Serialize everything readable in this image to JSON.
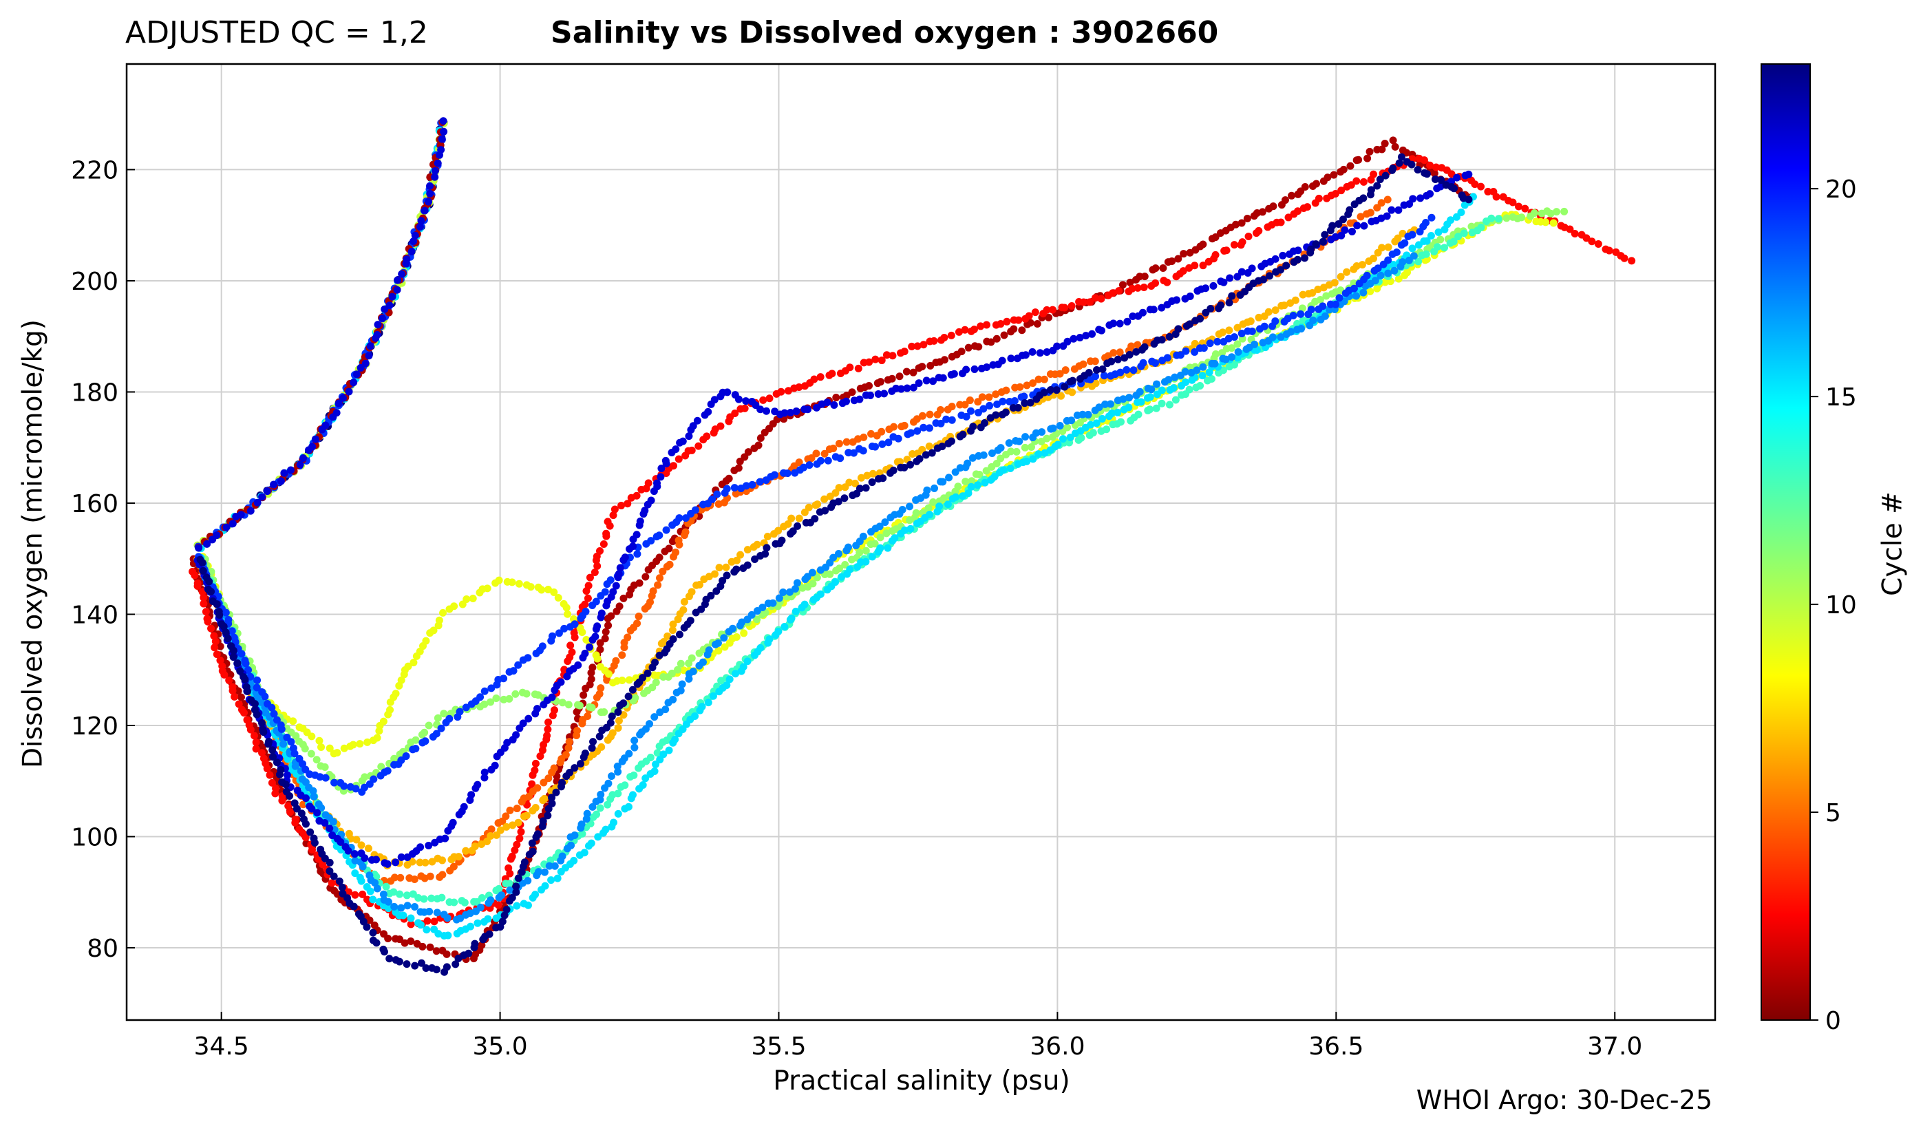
{
  "header": {
    "qc_label": "ADJUSTED QC = 1,2",
    "title": "Salinity vs Dissolved oxygen : 3902660"
  },
  "footer": {
    "credit": "WHOI Argo: 30-Dec-25"
  },
  "colorbar": {
    "label": "Cycle #",
    "min": 0,
    "max": 23,
    "ticks": [
      0,
      5,
      10,
      15,
      20
    ],
    "colormap": "jet (reversed: 0 = dark red, 23 = dark blue)"
  },
  "chart_data": {
    "type": "scatter",
    "title": "Salinity vs Dissolved oxygen : 3902660",
    "xlabel": "Practical salinity  (psu)",
    "ylabel": "Dissolved oxygen  (micromole/kg)",
    "xlim": [
      34.33,
      37.18
    ],
    "ylim": [
      67,
      239
    ],
    "xticks": [
      34.5,
      35.0,
      35.5,
      36.0,
      36.5,
      37.0
    ],
    "xtick_labels": [
      "34.5",
      "35.0",
      "35.5",
      "36.0",
      "36.5",
      "37.0"
    ],
    "yticks": [
      80,
      100,
      120,
      140,
      160,
      180,
      200,
      220
    ],
    "ytick_labels": [
      "80",
      "100",
      "120",
      "140",
      "160",
      "180",
      "200",
      "220"
    ],
    "grid": true,
    "color_variable": "Cycle #",
    "upper_branch": [
      [
        34.46,
        152
      ],
      [
        34.55,
        159
      ],
      [
        34.65,
        168
      ],
      [
        34.75,
        184
      ],
      [
        34.82,
        200
      ],
      [
        34.87,
        214
      ],
      [
        34.89,
        224
      ],
      [
        34.9,
        230
      ]
    ],
    "minimum_region": {
      "salinity": 34.9,
      "oxygen_min": 75
    },
    "series": [
      {
        "name": "Cycle 1",
        "cycle": 1,
        "points": [
          [
            34.45,
            150
          ],
          [
            34.5,
            133
          ],
          [
            34.6,
            110
          ],
          [
            34.7,
            90
          ],
          [
            34.8,
            82
          ],
          [
            34.95,
            78
          ],
          [
            35.05,
            95
          ],
          [
            35.2,
            140
          ],
          [
            35.5,
            175
          ],
          [
            35.8,
            186
          ],
          [
            36.1,
            198
          ],
          [
            36.4,
            214
          ],
          [
            36.6,
            225
          ],
          [
            36.75,
            214
          ]
        ]
      },
      {
        "name": "Cycle 3",
        "cycle": 3,
        "points": [
          [
            34.45,
            148
          ],
          [
            34.5,
            131
          ],
          [
            34.6,
            108
          ],
          [
            34.7,
            92
          ],
          [
            34.85,
            84
          ],
          [
            35.0,
            88
          ],
          [
            35.1,
            125
          ],
          [
            35.2,
            158
          ],
          [
            35.45,
            178
          ],
          [
            35.8,
            190
          ],
          [
            36.2,
            200
          ],
          [
            36.5,
            216
          ],
          [
            36.65,
            222
          ],
          [
            36.8,
            215
          ],
          [
            37.0,
            205
          ],
          [
            37.04,
            203
          ]
        ]
      },
      {
        "name": "Cycle 5",
        "cycle": 5,
        "points": [
          [
            34.46,
            150
          ],
          [
            34.55,
            128
          ],
          [
            34.65,
            106
          ],
          [
            34.78,
            92
          ],
          [
            34.9,
            93
          ],
          [
            35.1,
            112
          ],
          [
            35.2,
            130
          ],
          [
            35.35,
            158
          ],
          [
            35.6,
            170
          ],
          [
            35.9,
            180
          ],
          [
            36.2,
            190
          ],
          [
            36.45,
            205
          ],
          [
            36.6,
            215
          ]
        ]
      },
      {
        "name": "Cycle 7",
        "cycle": 7,
        "points": [
          [
            34.46,
            150
          ],
          [
            34.55,
            127
          ],
          [
            34.68,
            104
          ],
          [
            34.8,
            95
          ],
          [
            34.92,
            96
          ],
          [
            35.05,
            104
          ],
          [
            35.2,
            118
          ],
          [
            35.35,
            145
          ],
          [
            35.6,
            162
          ],
          [
            35.9,
            176
          ],
          [
            36.2,
            186
          ],
          [
            36.5,
            200
          ],
          [
            36.65,
            210
          ]
        ]
      },
      {
        "name": "Cycle 9",
        "cycle": 9,
        "points": [
          [
            34.47,
            150
          ],
          [
            34.56,
            126
          ],
          [
            34.7,
            115
          ],
          [
            34.78,
            118
          ],
          [
            34.82,
            128
          ],
          [
            34.9,
            140
          ],
          [
            35.0,
            146
          ],
          [
            35.1,
            144
          ],
          [
            35.2,
            128
          ],
          [
            35.35,
            130
          ],
          [
            35.6,
            150
          ],
          [
            35.9,
            166
          ],
          [
            36.3,
            185
          ],
          [
            36.6,
            200
          ],
          [
            36.8,
            212
          ],
          [
            36.9,
            210
          ]
        ]
      },
      {
        "name": "Cycle 11",
        "cycle": 11,
        "points": [
          [
            34.47,
            150
          ],
          [
            34.58,
            124
          ],
          [
            34.72,
            108
          ],
          [
            34.8,
            113
          ],
          [
            34.9,
            122
          ],
          [
            35.05,
            126
          ],
          [
            35.2,
            122
          ],
          [
            35.4,
            136
          ],
          [
            35.6,
            148
          ],
          [
            35.9,
            168
          ],
          [
            36.2,
            182
          ],
          [
            36.5,
            198
          ],
          [
            36.75,
            210
          ],
          [
            36.92,
            213
          ]
        ]
      },
      {
        "name": "Cycle 13",
        "cycle": 13,
        "points": [
          [
            34.46,
            150
          ],
          [
            34.57,
            125
          ],
          [
            34.68,
            104
          ],
          [
            34.8,
            90
          ],
          [
            34.95,
            88
          ],
          [
            35.1,
            96
          ],
          [
            35.25,
            112
          ],
          [
            35.4,
            128
          ],
          [
            35.6,
            146
          ],
          [
            35.9,
            166
          ],
          [
            36.2,
            178
          ],
          [
            36.5,
            196
          ],
          [
            36.8,
            212
          ]
        ]
      },
      {
        "name": "Cycle 15",
        "cycle": 15,
        "points": [
          [
            34.46,
            150
          ],
          [
            34.55,
            127
          ],
          [
            34.66,
            106
          ],
          [
            34.78,
            88
          ],
          [
            34.9,
            82
          ],
          [
            35.05,
            88
          ],
          [
            35.2,
            102
          ],
          [
            35.35,
            122
          ],
          [
            35.55,
            142
          ],
          [
            35.8,
            160
          ],
          [
            36.1,
            176
          ],
          [
            36.45,
            192
          ],
          [
            36.7,
            210
          ],
          [
            36.75,
            216
          ]
        ]
      },
      {
        "name": "Cycle 17",
        "cycle": 17,
        "points": [
          [
            34.46,
            150
          ],
          [
            34.56,
            126
          ],
          [
            34.68,
            105
          ],
          [
            34.8,
            88
          ],
          [
            34.93,
            85
          ],
          [
            35.1,
            95
          ],
          [
            35.25,
            118
          ],
          [
            35.4,
            136
          ],
          [
            35.6,
            150
          ],
          [
            35.85,
            168
          ],
          [
            36.15,
            180
          ],
          [
            36.45,
            192
          ],
          [
            36.65,
            205
          ]
        ]
      },
      {
        "name": "Cycle 19",
        "cycle": 19,
        "points": [
          [
            34.46,
            150
          ],
          [
            34.55,
            130
          ],
          [
            34.65,
            112
          ],
          [
            34.75,
            108
          ],
          [
            34.85,
            116
          ],
          [
            35.0,
            128
          ],
          [
            35.15,
            140
          ],
          [
            35.25,
            152
          ],
          [
            35.4,
            162
          ],
          [
            35.6,
            168
          ],
          [
            35.9,
            178
          ],
          [
            36.2,
            186
          ],
          [
            36.5,
            196
          ],
          [
            36.68,
            212
          ]
        ]
      },
      {
        "name": "Cycle 21",
        "cycle": 21,
        "points": [
          [
            34.46,
            150
          ],
          [
            34.54,
            128
          ],
          [
            34.62,
            110
          ],
          [
            34.72,
            98
          ],
          [
            34.8,
            95
          ],
          [
            34.9,
            100
          ],
          [
            35.0,
            115
          ],
          [
            35.15,
            132
          ],
          [
            35.3,
            168
          ],
          [
            35.4,
            180
          ],
          [
            35.5,
            176
          ],
          [
            35.7,
            180
          ],
          [
            36.0,
            188
          ],
          [
            36.3,
            200
          ],
          [
            36.55,
            210
          ],
          [
            36.75,
            220
          ]
        ]
      },
      {
        "name": "Cycle 23",
        "cycle": 23,
        "points": [
          [
            34.46,
            150
          ],
          [
            34.54,
            128
          ],
          [
            34.62,
            108
          ],
          [
            34.72,
            90
          ],
          [
            34.8,
            78
          ],
          [
            34.9,
            76
          ],
          [
            35.0,
            84
          ],
          [
            35.1,
            108
          ],
          [
            35.25,
            128
          ],
          [
            35.4,
            146
          ],
          [
            35.6,
            160
          ],
          [
            35.9,
            176
          ],
          [
            36.2,
            190
          ],
          [
            36.45,
            205
          ],
          [
            36.62,
            222
          ],
          [
            36.75,
            214
          ]
        ]
      }
    ]
  }
}
